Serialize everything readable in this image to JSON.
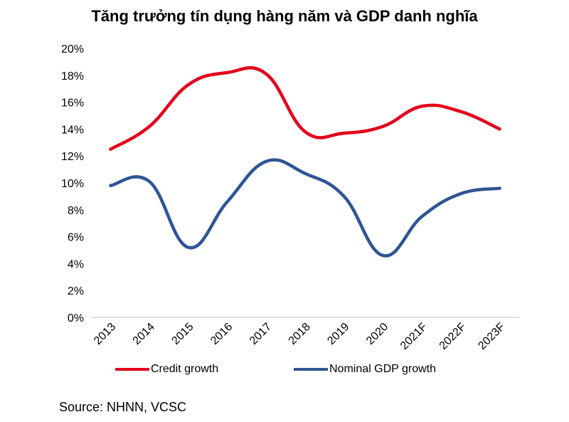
{
  "chart_data": {
    "type": "line",
    "title": "Tăng trưởng tín dụng hàng năm và GDP danh nghĩa",
    "categories": [
      "2013",
      "2014",
      "2015",
      "2016",
      "2017",
      "2018",
      "2019",
      "2020",
      "2021F",
      "2022F",
      "2023F"
    ],
    "series": [
      {
        "name": "Credit growth",
        "color": "#e3001b",
        "values": [
          12.5,
          14.2,
          17.3,
          18.2,
          18.1,
          13.8,
          13.7,
          14.2,
          15.7,
          15.3,
          14.0
        ]
      },
      {
        "name": "Nominal GDP growth",
        "color": "#2e5595",
        "values": [
          9.8,
          10.1,
          5.2,
          8.6,
          11.6,
          10.7,
          9.0,
          4.6,
          7.5,
          9.2,
          9.6
        ]
      }
    ],
    "ylim": [
      0,
      20
    ],
    "yticks": [
      "0%",
      "2%",
      "4%",
      "6%",
      "8%",
      "10%",
      "12%",
      "14%",
      "16%",
      "18%",
      "20%"
    ],
    "y_unit": "%",
    "grid": false,
    "legend_position": "bottom",
    "xlabel": "",
    "ylabel": ""
  },
  "source": "Source: NHNN, VCSC"
}
